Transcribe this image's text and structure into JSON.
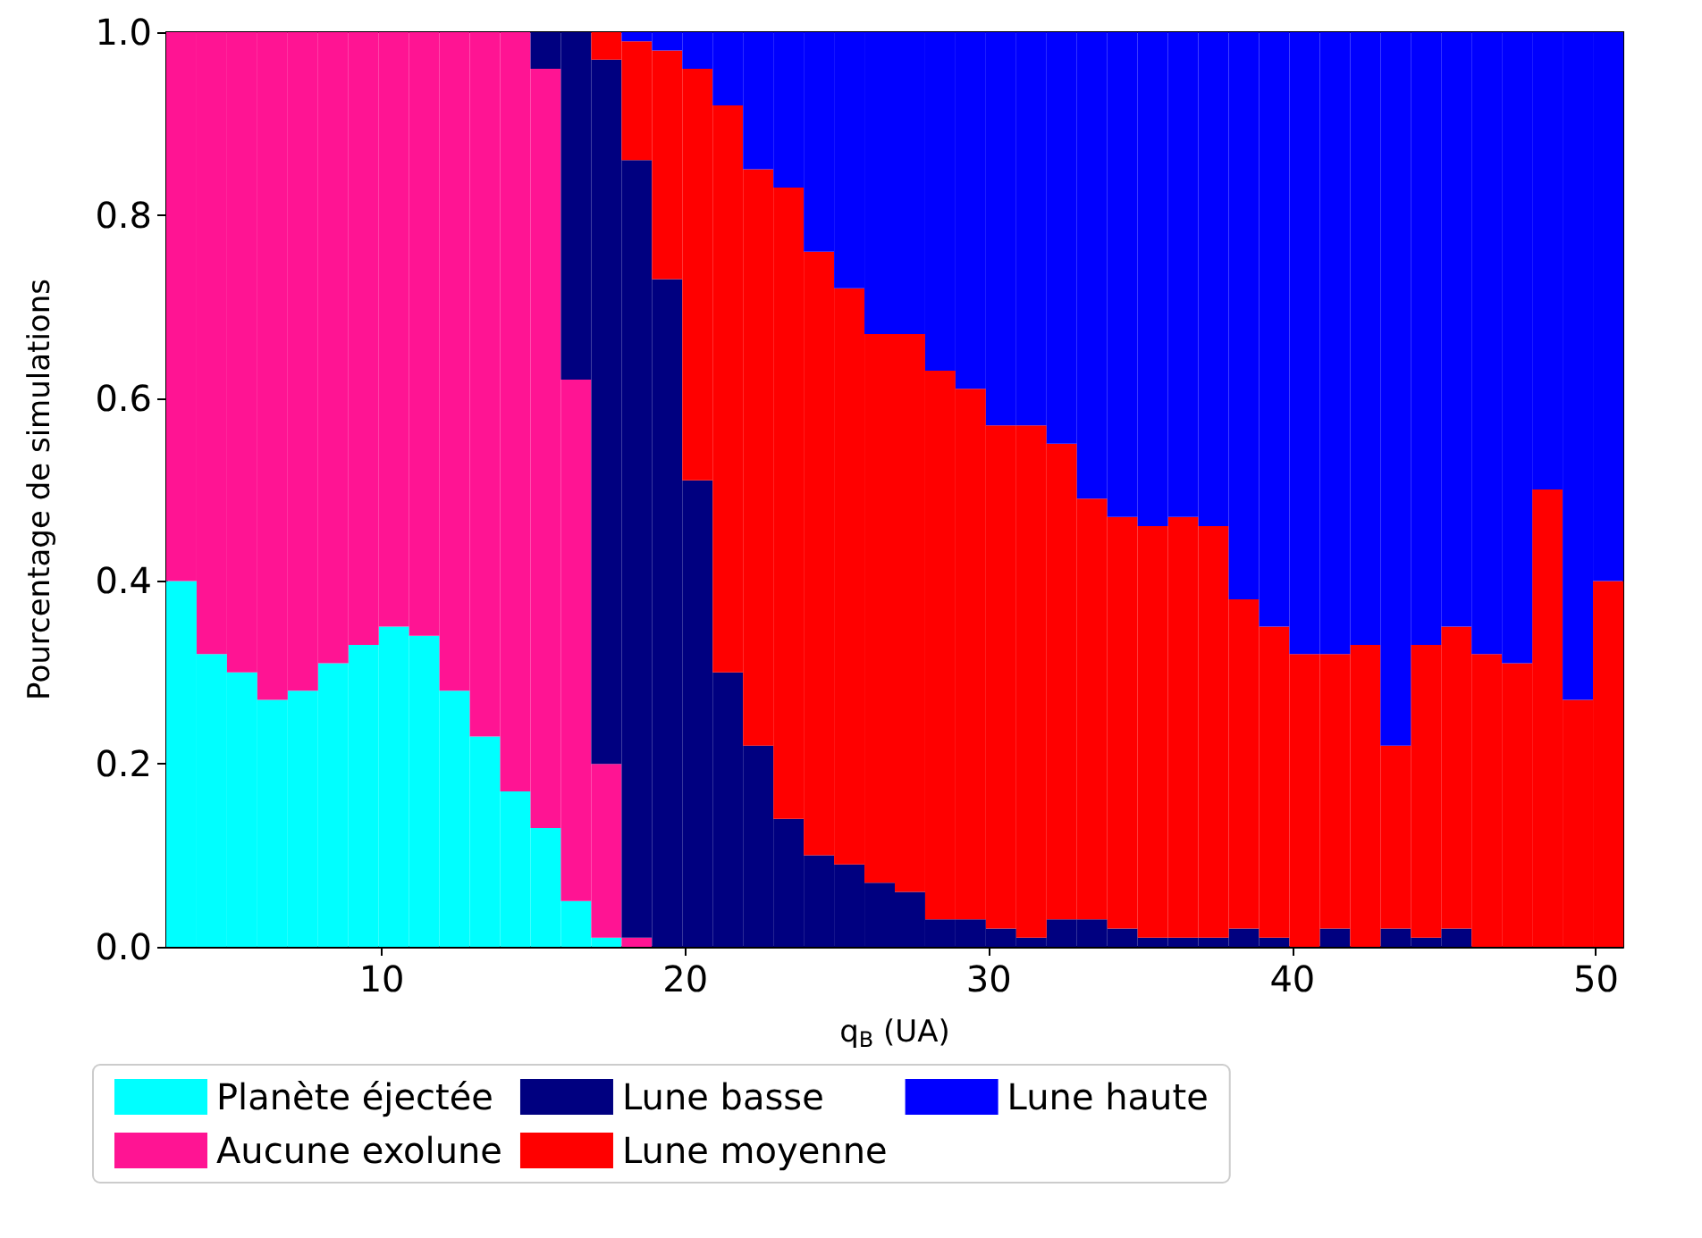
{
  "chart_data": {
    "type": "bar",
    "stacked": true,
    "xlabel": "q$_{B}$ (UA)",
    "ylabel": "Pourcentage de simulations",
    "x": [
      3.4,
      4.4,
      5.4,
      6.4,
      7.4,
      8.4,
      9.4,
      10.4,
      11.4,
      12.4,
      13.4,
      14.4,
      15.4,
      16.4,
      17.4,
      18.4,
      19.4,
      20.4,
      21.4,
      22.4,
      23.4,
      24.4,
      25.4,
      26.4,
      27.4,
      28.4,
      29.4,
      30.4,
      31.4,
      32.4,
      33.4,
      34.4,
      35.4,
      36.4,
      37.4,
      38.4,
      39.4,
      40.4,
      41.4,
      42.4,
      43.4,
      44.4,
      45.4,
      46.4,
      47.4,
      48.4,
      49.4,
      50.4
    ],
    "series": [
      {
        "name": "Planète éjectée",
        "color": "#00ffff",
        "values": [
          0.4,
          0.32,
          0.3,
          0.27,
          0.28,
          0.31,
          0.33,
          0.35,
          0.34,
          0.28,
          0.23,
          0.17,
          0.13,
          0.05,
          0.01,
          0,
          0,
          0,
          0,
          0,
          0,
          0,
          0,
          0,
          0,
          0,
          0,
          0,
          0,
          0,
          0,
          0,
          0,
          0,
          0,
          0,
          0,
          0,
          0,
          0,
          0,
          0,
          0,
          0,
          0,
          0,
          0,
          0
        ]
      },
      {
        "name": "Aucune exolune",
        "color": "#ff1493",
        "values": [
          0.6,
          0.68,
          0.7,
          0.73,
          0.72,
          0.69,
          0.67,
          0.65,
          0.66,
          0.72,
          0.77,
          0.83,
          0.83,
          0.57,
          0.19,
          0.01,
          0,
          0,
          0,
          0,
          0,
          0,
          0,
          0,
          0,
          0,
          0,
          0,
          0,
          0,
          0,
          0,
          0,
          0,
          0,
          0,
          0,
          0,
          0,
          0,
          0,
          0,
          0,
          0,
          0,
          0,
          0,
          0
        ]
      },
      {
        "name": "Lune basse",
        "color": "#000080",
        "values": [
          0,
          0,
          0,
          0,
          0,
          0,
          0,
          0,
          0,
          0,
          0,
          0,
          0.04,
          0.38,
          0.77,
          0.85,
          0.73,
          0.51,
          0.3,
          0.22,
          0.14,
          0.1,
          0.09,
          0.07,
          0.06,
          0.03,
          0.03,
          0.02,
          0.01,
          0.03,
          0.03,
          0.02,
          0.01,
          0.01,
          0.01,
          0.02,
          0.01,
          0,
          0.02,
          0,
          0.02,
          0.01,
          0.02,
          0,
          0,
          0,
          0,
          0
        ]
      },
      {
        "name": "Lune moyenne",
        "color": "#ff0000",
        "values": [
          0,
          0,
          0,
          0,
          0,
          0,
          0,
          0,
          0,
          0,
          0,
          0,
          0,
          0,
          0.03,
          0.13,
          0.25,
          0.45,
          0.62,
          0.63,
          0.69,
          0.66,
          0.63,
          0.6,
          0.61,
          0.6,
          0.58,
          0.55,
          0.56,
          0.52,
          0.46,
          0.45,
          0.45,
          0.46,
          0.45,
          0.36,
          0.34,
          0.32,
          0.3,
          0.33,
          0.2,
          0.32,
          0.33,
          0.32,
          0.31,
          0.5,
          0.27,
          0.4
        ]
      },
      {
        "name": "Lune haute",
        "color": "#0000ff",
        "values": [
          0,
          0,
          0,
          0,
          0,
          0,
          0,
          0,
          0,
          0,
          0,
          0,
          0,
          0,
          0,
          0.01,
          0.02,
          0.04,
          0.08,
          0.15,
          0.17,
          0.24,
          0.28,
          0.33,
          0.33,
          0.37,
          0.39,
          0.43,
          0.43,
          0.45,
          0.51,
          0.53,
          0.54,
          0.53,
          0.54,
          0.62,
          0.65,
          0.68,
          0.68,
          0.67,
          0.78,
          0.67,
          0.65,
          0.68,
          0.69,
          0.5,
          0.73,
          0.6
        ]
      }
    ],
    "xlim": [
      2.9,
      50.9
    ],
    "xticks": [
      10,
      20,
      30,
      40,
      50
    ],
    "ylim": [
      0,
      1
    ],
    "yticks": [
      {
        "value": 0,
        "label": "0.0"
      },
      0.2,
      0.4,
      0.6,
      0.8,
      {
        "value": 1,
        "label": "1.0"
      }
    ],
    "grid": false,
    "legend": "bottom"
  }
}
